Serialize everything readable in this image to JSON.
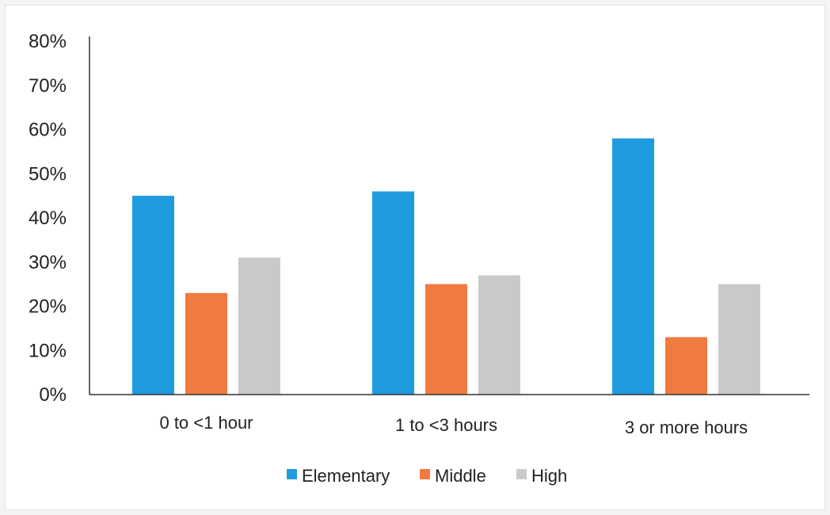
{
  "chart_data": {
    "type": "bar",
    "title": "",
    "xlabel": "",
    "ylabel": "",
    "categories": [
      "0 to <1 hour",
      "1 to <3 hours",
      "3 or more hours"
    ],
    "series": [
      {
        "name": "Elementary",
        "color": "#1f9bdf",
        "values": [
          45,
          46,
          58
        ]
      },
      {
        "name": "Middle",
        "color": "#f07a3f",
        "values": [
          23,
          25,
          13
        ]
      },
      {
        "name": "High",
        "color": "#c9c9c9",
        "values": [
          31,
          27,
          25
        ]
      }
    ],
    "ylim": [
      0,
      80
    ],
    "yticks": [
      "0%",
      "10%",
      "20%",
      "30%",
      "40%",
      "50%",
      "60%",
      "70%",
      "80%"
    ],
    "grid": false,
    "legend_position": "bottom"
  }
}
